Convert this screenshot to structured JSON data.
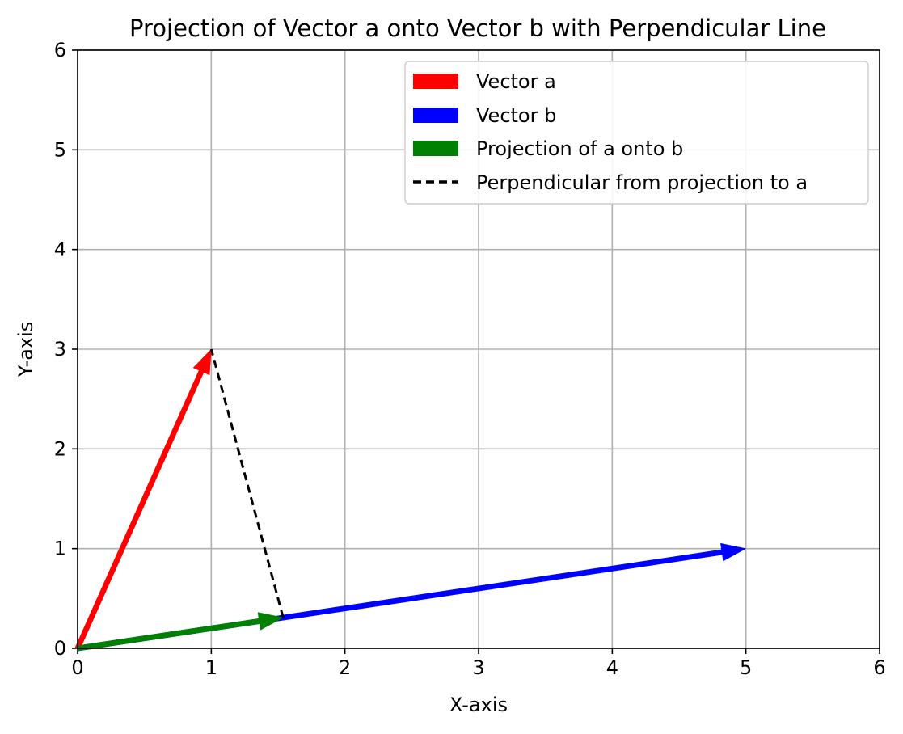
{
  "chart_data": {
    "type": "vector",
    "title": "Projection of Vector a onto Vector b with Perpendicular Line",
    "xlabel": "X-axis",
    "ylabel": "Y-axis",
    "xlim": [
      0,
      6
    ],
    "ylim": [
      0,
      6
    ],
    "xticks": [
      "0",
      "1",
      "2",
      "3",
      "4",
      "5",
      "6"
    ],
    "yticks": [
      "0",
      "1",
      "2",
      "3",
      "4",
      "5",
      "6"
    ],
    "grid": true,
    "legend_position": "top-right",
    "vectors": [
      {
        "name": "Vector a",
        "from": [
          0,
          0
        ],
        "to": [
          1,
          3
        ],
        "color": "#ff0000"
      },
      {
        "name": "Vector b",
        "from": [
          0,
          0
        ],
        "to": [
          5,
          1
        ],
        "color": "#0000ff"
      },
      {
        "name": "Projection of a onto b",
        "from": [
          0,
          0
        ],
        "to": [
          1.538,
          0.308
        ],
        "color": "#008000"
      }
    ],
    "lines": [
      {
        "name": "Perpendicular from projection to a",
        "from": [
          1.538,
          0.308
        ],
        "to": [
          1,
          3
        ],
        "color": "#000000",
        "style": "dashed"
      }
    ]
  }
}
